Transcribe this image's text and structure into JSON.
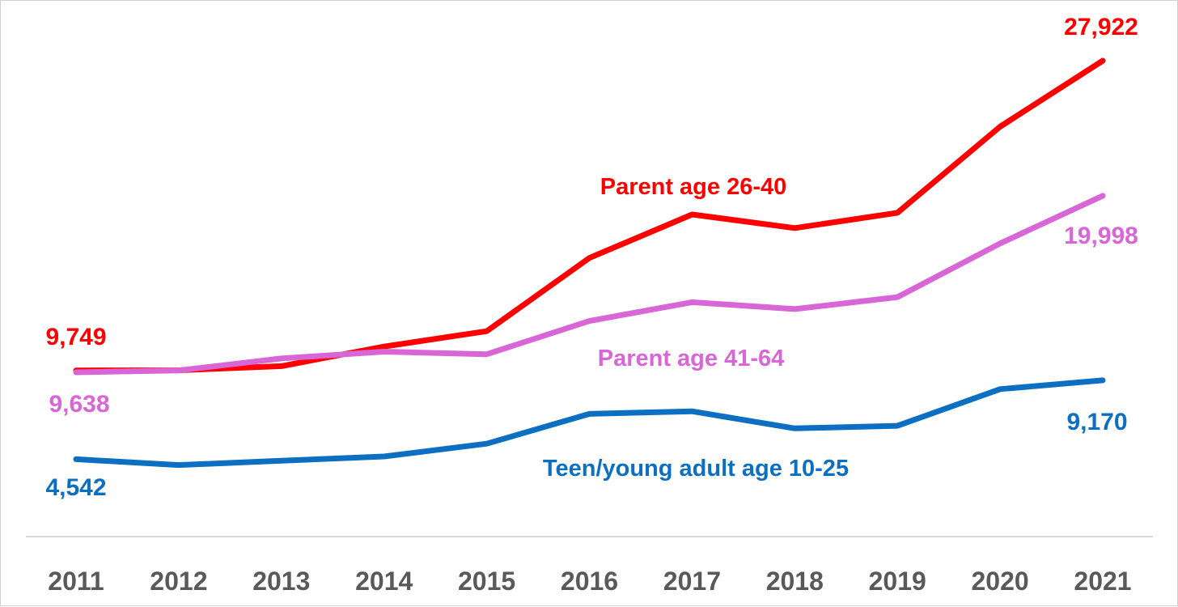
{
  "chart_data": {
    "type": "line",
    "title": "",
    "xlabel": "",
    "ylabel": "",
    "x": [
      "2011",
      "2012",
      "2013",
      "2014",
      "2015",
      "2016",
      "2017",
      "2018",
      "2019",
      "2020",
      "2021"
    ],
    "ylim": [
      0,
      30000
    ],
    "grid": false,
    "legend": "inline labels",
    "series": [
      {
        "name": "Parent age 26-40",
        "color": "#ff0000",
        "values": [
          9749,
          9760,
          10000,
          11150,
          12050,
          16350,
          18900,
          18100,
          19000,
          24050,
          27922
        ],
        "start_label": "9,749",
        "end_label": "27,922"
      },
      {
        "name": "Parent age 41-64",
        "color": "#d966d6",
        "values": [
          9638,
          9750,
          10450,
          10850,
          10700,
          12650,
          13750,
          13350,
          14050,
          17200,
          19998
        ],
        "start_label": "9,638",
        "end_label": "19,998"
      },
      {
        "name": "Teen/young adult age 10-25",
        "color": "#0d6fc2",
        "values": [
          4542,
          4200,
          4450,
          4700,
          5450,
          7200,
          7350,
          6350,
          6500,
          8650,
          9170
        ],
        "start_label": "4,542",
        "end_label": "9,170"
      }
    ]
  }
}
